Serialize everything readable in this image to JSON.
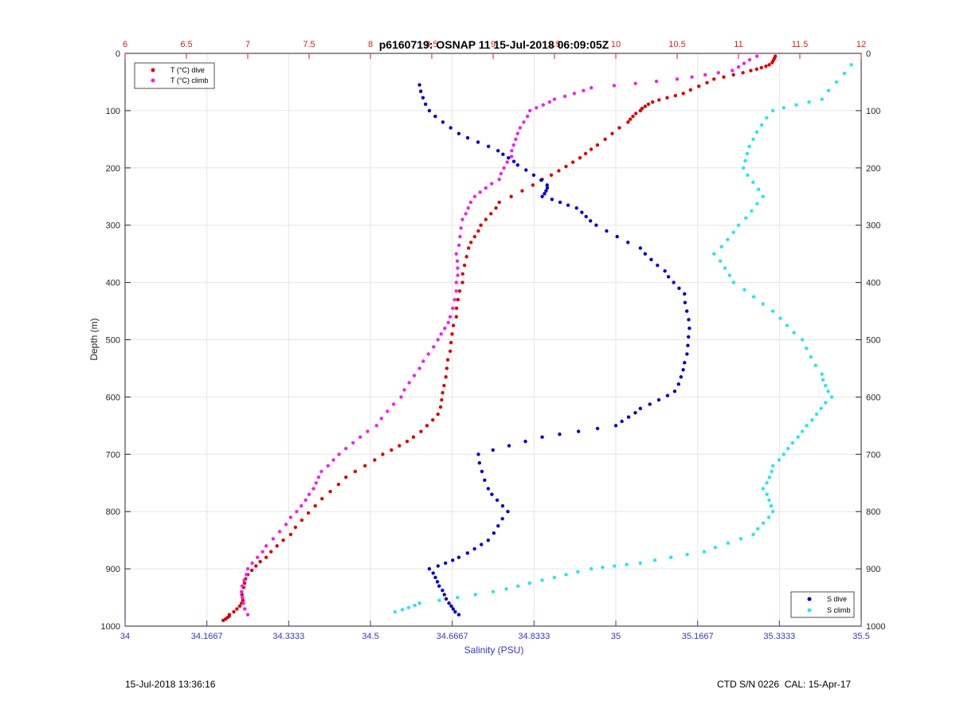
{
  "chart_data": {
    "type": "scatter",
    "title": "p6160719: OSNAP 11 15-Jul-2018 06:09:05Z",
    "ylabel": "Depth (m)",
    "xlabel_bottom": "Salinity (PSU)",
    "xlabel_top": "",
    "ylim": [
      0,
      1000
    ],
    "y_reversed": true,
    "yticks": [
      0,
      100,
      200,
      300,
      400,
      500,
      600,
      700,
      800,
      900,
      1000
    ],
    "x_bottom": {
      "lim": [
        34,
        35.5
      ],
      "ticks": [
        34,
        34.1667,
        34.3333,
        34.5,
        34.6667,
        34.8333,
        35,
        35.1667,
        35.3333,
        35.5
      ],
      "ticklabels": [
        "34",
        "34.1667",
        "34.3333",
        "34.5",
        "34.6667",
        "34.8333",
        "35",
        "35.1667",
        "35.3333",
        "35.5"
      ],
      "color": "#3636c8"
    },
    "x_top": {
      "lim": [
        6,
        12
      ],
      "ticks": [
        6,
        6.5,
        7,
        7.5,
        8,
        8.5,
        9,
        9.5,
        10,
        10.5,
        11,
        11.5,
        12
      ],
      "ticklabels": [
        "6",
        "6.5",
        "7",
        "7.5",
        "8",
        "8.5",
        "9",
        "9.5",
        "10",
        "10.5",
        "11",
        "11.5",
        "12"
      ],
      "color": "#d62020"
    },
    "grid": true,
    "legend_top_left": [
      {
        "label": "T (°C) dive",
        "color": "#dd0000"
      },
      {
        "label": "T (°C) climb",
        "color": "#ee22ee"
      }
    ],
    "legend_bottom_right": [
      {
        "label": "S dive",
        "color": "#0000cc"
      },
      {
        "label": "S climb",
        "color": "#22e8ee"
      }
    ],
    "series": [
      {
        "name": "T (°C) dive",
        "axis": "top",
        "color": "#dd0000",
        "points": [
          [
            11.3,
            5
          ],
          [
            11.25,
            20
          ],
          [
            11.1,
            30
          ],
          [
            10.8,
            45
          ],
          [
            10.55,
            70
          ],
          [
            10.3,
            85
          ],
          [
            10.2,
            100
          ],
          [
            10.1,
            120
          ],
          [
            9.85,
            160
          ],
          [
            9.65,
            190
          ],
          [
            9.4,
            220
          ],
          [
            9.05,
            260
          ],
          [
            8.9,
            300
          ],
          [
            8.8,
            340
          ],
          [
            8.75,
            400
          ],
          [
            8.7,
            460
          ],
          [
            8.65,
            520
          ],
          [
            8.6,
            580
          ],
          [
            8.55,
            630
          ],
          [
            8.35,
            670
          ],
          [
            8.1,
            700
          ],
          [
            7.8,
            740
          ],
          [
            7.55,
            790
          ],
          [
            7.35,
            840
          ],
          [
            7.15,
            880
          ],
          [
            7.0,
            910
          ],
          [
            6.95,
            940
          ],
          [
            6.95,
            960
          ],
          [
            6.85,
            980
          ],
          [
            6.8,
            990
          ]
        ]
      },
      {
        "name": "T (°C) climb",
        "axis": "top",
        "color": "#ee22ee",
        "points": [
          [
            11.15,
            5
          ],
          [
            10.95,
            30
          ],
          [
            10.5,
            45
          ],
          [
            9.8,
            60
          ],
          [
            9.5,
            80
          ],
          [
            9.3,
            100
          ],
          [
            9.2,
            140
          ],
          [
            9.15,
            180
          ],
          [
            9.05,
            220
          ],
          [
            8.85,
            250
          ],
          [
            8.75,
            290
          ],
          [
            8.7,
            350
          ],
          [
            8.7,
            400
          ],
          [
            8.65,
            460
          ],
          [
            8.55,
            500
          ],
          [
            8.4,
            550
          ],
          [
            8.25,
            600
          ],
          [
            8.05,
            650
          ],
          [
            7.8,
            690
          ],
          [
            7.6,
            730
          ],
          [
            7.5,
            770
          ],
          [
            7.35,
            810
          ],
          [
            7.15,
            860
          ],
          [
            7.0,
            900
          ],
          [
            6.95,
            940
          ],
          [
            7.0,
            980
          ]
        ]
      },
      {
        "name": "S dive",
        "axis": "bottom",
        "color": "#0000cc",
        "points": [
          [
            34.6,
            55
          ],
          [
            34.62,
            100
          ],
          [
            34.68,
            140
          ],
          [
            34.76,
            170
          ],
          [
            34.8,
            195
          ],
          [
            34.86,
            230
          ],
          [
            34.85,
            250
          ],
          [
            34.92,
            270
          ],
          [
            34.96,
            300
          ],
          [
            35.05,
            340
          ],
          [
            35.1,
            380
          ],
          [
            35.14,
            420
          ],
          [
            35.15,
            480
          ],
          [
            35.14,
            540
          ],
          [
            35.12,
            590
          ],
          [
            35.05,
            620
          ],
          [
            35.0,
            650
          ],
          [
            34.85,
            670
          ],
          [
            34.72,
            700
          ],
          [
            34.74,
            760
          ],
          [
            34.78,
            800
          ],
          [
            34.74,
            850
          ],
          [
            34.68,
            880
          ],
          [
            34.62,
            900
          ],
          [
            34.64,
            930
          ],
          [
            34.66,
            960
          ],
          [
            34.68,
            980
          ]
        ]
      },
      {
        "name": "S climb",
        "axis": "bottom",
        "color": "#22e8ee",
        "points": [
          [
            35.48,
            20
          ],
          [
            35.42,
            80
          ],
          [
            35.32,
            100
          ],
          [
            35.28,
            150
          ],
          [
            35.26,
            200
          ],
          [
            35.3,
            250
          ],
          [
            35.25,
            300
          ],
          [
            35.2,
            350
          ],
          [
            35.24,
            400
          ],
          [
            35.32,
            450
          ],
          [
            35.38,
            500
          ],
          [
            35.42,
            560
          ],
          [
            35.44,
            600
          ],
          [
            35.4,
            640
          ],
          [
            35.36,
            680
          ],
          [
            35.32,
            720
          ],
          [
            35.3,
            760
          ],
          [
            35.32,
            800
          ],
          [
            35.28,
            840
          ],
          [
            35.18,
            870
          ],
          [
            35.05,
            890
          ],
          [
            34.95,
            900
          ],
          [
            34.85,
            920
          ],
          [
            34.75,
            940
          ],
          [
            34.6,
            960
          ],
          [
            34.55,
            975
          ]
        ]
      }
    ]
  },
  "footer": {
    "left": "15-Jul-2018 13:36:16",
    "right": "CTD S/N 0226  CAL: 15-Apr-17"
  }
}
